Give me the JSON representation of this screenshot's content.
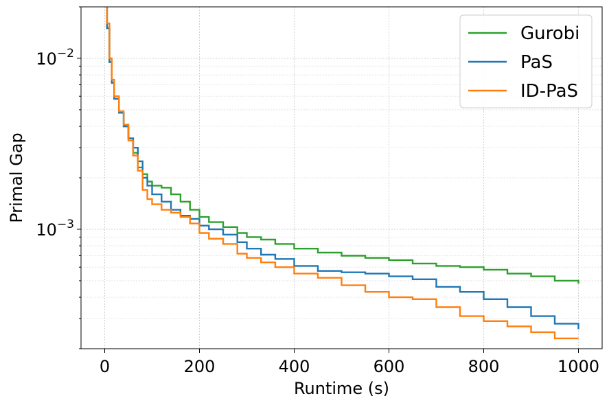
{
  "chart_data": {
    "type": "line",
    "xlabel": "Runtime (s)",
    "ylabel": "Primal Gap",
    "xlim": [
      -50,
      1050
    ],
    "ylim": [
      0.0002,
      0.02
    ],
    "yscale": "log",
    "grid": true,
    "legend_position": "top-right",
    "x_ticks": [
      {
        "value": 0,
        "label": "0"
      },
      {
        "value": 200,
        "label": "200"
      },
      {
        "value": 400,
        "label": "400"
      },
      {
        "value": 600,
        "label": "600"
      },
      {
        "value": 800,
        "label": "800"
      },
      {
        "value": 1000,
        "label": "1000"
      }
    ],
    "y_ticks": [
      {
        "value": 0.01,
        "base": "10",
        "exp": "−2"
      },
      {
        "value": 0.001,
        "base": "10",
        "exp": "−3"
      }
    ],
    "series": [
      {
        "name": "Gurobi",
        "color": "#2ca02c",
        "x": [
          3,
          5,
          10,
          15,
          20,
          30,
          40,
          50,
          60,
          70,
          80,
          90,
          100,
          120,
          140,
          160,
          180,
          200,
          220,
          250,
          280,
          300,
          330,
          360,
          400,
          450,
          500,
          550,
          600,
          650,
          700,
          750,
          800,
          850,
          900,
          950,
          1000
        ],
        "y": [
          0.022,
          0.015,
          0.0095,
          0.0072,
          0.0058,
          0.0048,
          0.004,
          0.0034,
          0.0028,
          0.0023,
          0.0021,
          0.0019,
          0.0018,
          0.00175,
          0.0016,
          0.00145,
          0.0013,
          0.00118,
          0.0011,
          0.00103,
          0.00095,
          0.0009,
          0.00087,
          0.00082,
          0.00077,
          0.00073,
          0.0007,
          0.00068,
          0.00066,
          0.00063,
          0.00061,
          0.0006,
          0.00058,
          0.00055,
          0.00053,
          0.0005,
          0.00048
        ]
      },
      {
        "name": "PaS",
        "color": "#1f77b4",
        "x": [
          3,
          5,
          10,
          15,
          20,
          30,
          40,
          50,
          60,
          70,
          80,
          90,
          100,
          120,
          140,
          160,
          180,
          200,
          220,
          250,
          280,
          300,
          330,
          360,
          400,
          450,
          500,
          550,
          600,
          650,
          700,
          750,
          800,
          850,
          900,
          950,
          1000
        ],
        "y": [
          0.022,
          0.015,
          0.0095,
          0.0072,
          0.0058,
          0.0048,
          0.004,
          0.0034,
          0.003,
          0.0025,
          0.002,
          0.0018,
          0.0016,
          0.00145,
          0.0013,
          0.0012,
          0.00115,
          0.00105,
          0.001,
          0.00093,
          0.00084,
          0.00077,
          0.00071,
          0.00067,
          0.00061,
          0.00057,
          0.00056,
          0.00055,
          0.00053,
          0.00051,
          0.00046,
          0.00043,
          0.00039,
          0.00035,
          0.00031,
          0.00028,
          0.00026
        ]
      },
      {
        "name": "ID-PaS",
        "color": "#ff7f0e",
        "x": [
          3,
          5,
          10,
          15,
          20,
          30,
          40,
          50,
          60,
          70,
          80,
          90,
          100,
          120,
          140,
          160,
          180,
          200,
          220,
          250,
          280,
          300,
          330,
          360,
          400,
          450,
          500,
          550,
          600,
          650,
          700,
          750,
          800,
          850,
          900,
          950,
          1000
        ],
        "y": [
          0.022,
          0.016,
          0.01,
          0.0075,
          0.006,
          0.0049,
          0.0041,
          0.0033,
          0.0027,
          0.0022,
          0.0017,
          0.0015,
          0.0014,
          0.0013,
          0.00125,
          0.00118,
          0.00108,
          0.00095,
          0.00088,
          0.00082,
          0.00072,
          0.00068,
          0.00064,
          0.0006,
          0.00055,
          0.00052,
          0.00047,
          0.00043,
          0.0004,
          0.00039,
          0.00035,
          0.00031,
          0.00029,
          0.00027,
          0.00025,
          0.00023,
          0.00023
        ]
      }
    ]
  }
}
